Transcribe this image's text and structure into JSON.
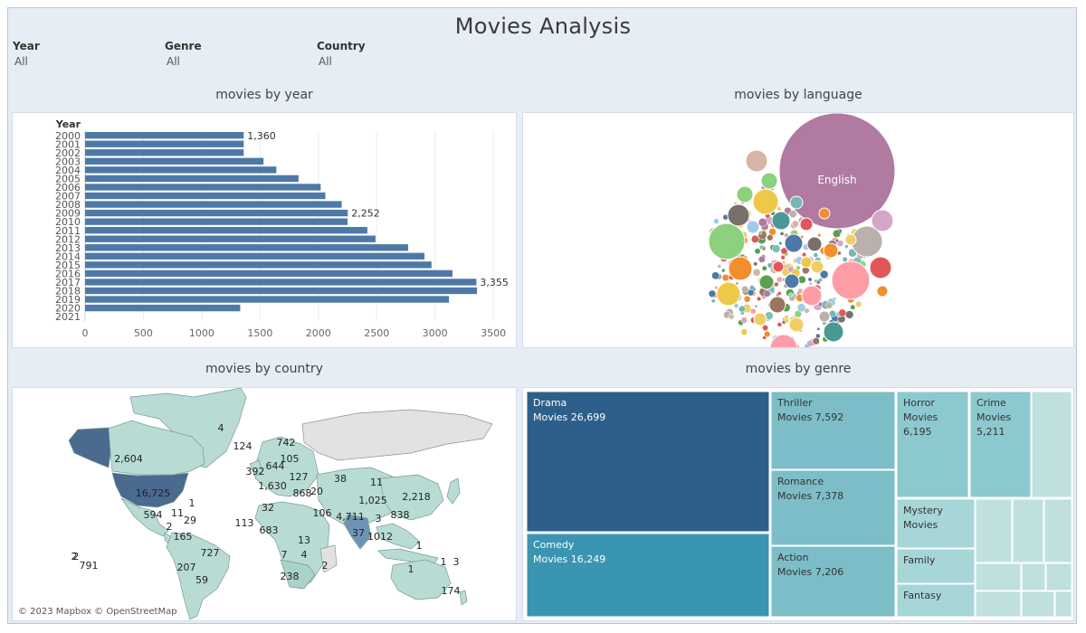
{
  "header": {
    "title": "Movies Analysis"
  },
  "filters": [
    {
      "label": "Year",
      "value": "All"
    },
    {
      "label": "Genre",
      "value": "All"
    },
    {
      "label": "Country",
      "value": "All"
    }
  ],
  "panels": {
    "year": "movies by year",
    "language": "movies by language",
    "country": "movies by country",
    "genre": "movies by genre"
  },
  "map_attribution": "© 2023 Mapbox © OpenStreetMap",
  "colors": {
    "bar": "#4e79a7",
    "english": "#b07aa1",
    "usa": "#4a6a8f",
    "drama": "#2e5f8a",
    "comedy": "#3a95b2"
  },
  "chart_data": [
    {
      "type": "bar",
      "orientation": "horizontal",
      "axis_title": "Year",
      "categories": [
        "2000",
        "2001",
        "2002",
        "2003",
        "2004",
        "2005",
        "2006",
        "2007",
        "2008",
        "2009",
        "2010",
        "2011",
        "2012",
        "2013",
        "2014",
        "2015",
        "2016",
        "2017",
        "2018",
        "2019",
        "2020",
        "2021"
      ],
      "values": [
        1360,
        1360,
        1360,
        1530,
        1640,
        1830,
        2020,
        2060,
        2200,
        2252,
        2250,
        2420,
        2490,
        2770,
        2910,
        2970,
        3150,
        3355,
        3360,
        3120,
        1330,
        0
      ],
      "labels": [
        {
          "index": 0,
          "text": "1,360"
        },
        {
          "index": 9,
          "text": "2,252"
        },
        {
          "index": 17,
          "text": "3,355"
        }
      ],
      "xticks": [
        0,
        500,
        1000,
        1500,
        2000,
        2500,
        3000,
        3500
      ],
      "xlim": [
        0,
        3600
      ],
      "grid": true
    },
    {
      "type": "bubble",
      "labeled": [
        {
          "name": "English"
        }
      ]
    },
    {
      "type": "map",
      "labels": [
        "4",
        "124",
        "742",
        "105",
        "2,604",
        "392",
        "644",
        "127",
        "38",
        "11",
        "16,725",
        "1,630",
        "868",
        "20",
        "1,025",
        "2,218",
        "1",
        "594",
        "11",
        "29",
        "32",
        "106",
        "4,711",
        "3",
        "838",
        "113",
        "683",
        "37",
        "1012",
        "165",
        "2",
        "727",
        "13",
        "7",
        "4",
        "1",
        "2",
        "791",
        "1",
        "3",
        "207",
        "59",
        "238",
        "2",
        "1",
        "174",
        "2"
      ]
    },
    {
      "type": "treemap",
      "items": [
        {
          "name": "Drama",
          "line2": "Movies 26,699",
          "value": 26699
        },
        {
          "name": "Comedy",
          "line2": "Movies 16,249",
          "value": 16249
        },
        {
          "name": "Thriller",
          "line2": "Movies 7,592",
          "value": 7592
        },
        {
          "name": "Romance",
          "line2": "Movies 7,378",
          "value": 7378
        },
        {
          "name": "Action",
          "line2": "Movies 7,206",
          "value": 7206
        },
        {
          "name": "Horror",
          "line2": "Movies",
          "line3": "6,195",
          "value": 6195
        },
        {
          "name": "Crime",
          "line2": "Movies",
          "line3": "5,211",
          "value": 5211
        },
        {
          "name": "Mystery",
          "line2": "Movies"
        },
        {
          "name": "Family"
        },
        {
          "name": "Fantasy"
        }
      ]
    }
  ]
}
